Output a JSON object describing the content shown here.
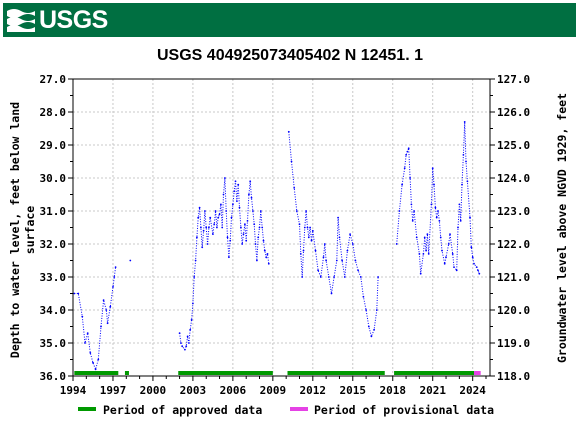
{
  "header": {
    "logo_text": "USGS",
    "logo_icon": "usgs-wave-icon",
    "color": "#006f41"
  },
  "chart_data": {
    "type": "line",
    "title": "USGS 404925073405402 N 12451. 1",
    "ylabel_left_lines": [
      "Depth to water level, feet below land",
      "surface"
    ],
    "ylabel_right": "Groundwater level above NGVD 1929, feet",
    "x_ticks": [
      "1994",
      "1997",
      "2000",
      "2003",
      "2006",
      "2009",
      "2012",
      "2015",
      "2018",
      "2021",
      "2024"
    ],
    "xlim": [
      1994,
      2025.3
    ],
    "y_left_ticks": [
      "27.0",
      "28.0",
      "29.0",
      "30.0",
      "31.0",
      "32.0",
      "33.0",
      "34.0",
      "35.0",
      "36.0"
    ],
    "ylim_left": [
      27.0,
      36.0
    ],
    "y_left_inverted": true,
    "y_right_ticks": [
      "127.0",
      "126.0",
      "125.0",
      "124.0",
      "123.0",
      "122.0",
      "121.0",
      "120.0",
      "119.0",
      "118.0"
    ],
    "ylim_right": [
      118.0,
      127.0
    ],
    "line_color": "#0000ff",
    "grid": true,
    "series": [
      {
        "values": [
          [
            1994.1,
            33.5
          ],
          [
            1994.4,
            33.5
          ],
          [
            1994.7,
            34.2
          ],
          [
            1994.9,
            35.0
          ],
          [
            1995.1,
            34.7
          ],
          [
            1995.3,
            35.3
          ],
          [
            1995.5,
            35.6
          ],
          [
            1995.7,
            35.8
          ],
          [
            1995.9,
            35.5
          ],
          [
            1996.1,
            34.5
          ],
          [
            1996.3,
            33.7
          ],
          [
            1996.5,
            34.0
          ],
          [
            1996.6,
            34.4
          ],
          [
            1996.8,
            33.9
          ],
          [
            1997.0,
            33.3
          ],
          [
            1997.1,
            33.0
          ],
          [
            1997.2,
            32.7
          ]
        ]
      },
      {
        "values": [
          [
            1998.3,
            32.5
          ]
        ]
      },
      {
        "values": [
          [
            2002.0,
            34.7
          ],
          [
            2002.1,
            35.0
          ],
          [
            2002.2,
            35.1
          ],
          [
            2002.4,
            35.2
          ],
          [
            2002.5,
            35.1
          ],
          [
            2002.6,
            34.8
          ],
          [
            2002.7,
            35.0
          ],
          [
            2002.8,
            34.6
          ],
          [
            2002.9,
            34.3
          ],
          [
            2003.0,
            33.8
          ],
          [
            2003.1,
            33.0
          ],
          [
            2003.2,
            32.5
          ],
          [
            2003.3,
            31.8
          ],
          [
            2003.4,
            31.2
          ],
          [
            2003.5,
            30.9
          ],
          [
            2003.6,
            31.5
          ],
          [
            2003.7,
            32.1
          ],
          [
            2003.8,
            31.6
          ],
          [
            2003.9,
            31.0
          ],
          [
            2004.0,
            31.5
          ],
          [
            2004.1,
            32.0
          ],
          [
            2004.2,
            31.5
          ],
          [
            2004.3,
            31.2
          ],
          [
            2004.5,
            31.7
          ],
          [
            2004.6,
            31.4
          ],
          [
            2004.7,
            31.0
          ],
          [
            2004.8,
            31.5
          ],
          [
            2004.9,
            31.2
          ],
          [
            2005.0,
            31.1
          ],
          [
            2005.1,
            30.8
          ],
          [
            2005.2,
            31.5
          ],
          [
            2005.3,
            30.5
          ],
          [
            2005.4,
            30.0
          ],
          [
            2005.5,
            31.0
          ],
          [
            2005.6,
            31.8
          ],
          [
            2005.7,
            32.4
          ],
          [
            2005.8,
            31.9
          ],
          [
            2005.9,
            31.2
          ],
          [
            2006.0,
            30.8
          ],
          [
            2006.1,
            30.4
          ],
          [
            2006.2,
            30.1
          ],
          [
            2006.3,
            30.7
          ],
          [
            2006.4,
            30.2
          ],
          [
            2006.5,
            30.9
          ],
          [
            2006.6,
            31.5
          ],
          [
            2006.7,
            32.0
          ],
          [
            2006.8,
            31.7
          ],
          [
            2006.9,
            31.4
          ],
          [
            2007.0,
            31.9
          ],
          [
            2007.1,
            31.3
          ],
          [
            2007.2,
            30.5
          ],
          [
            2007.3,
            30.1
          ],
          [
            2007.4,
            30.6
          ],
          [
            2007.5,
            31.0
          ],
          [
            2007.6,
            31.4
          ],
          [
            2007.7,
            32.0
          ],
          [
            2007.8,
            32.5
          ],
          [
            2007.9,
            31.8
          ],
          [
            2008.0,
            31.5
          ],
          [
            2008.1,
            31.0
          ],
          [
            2008.2,
            31.5
          ],
          [
            2008.3,
            31.9
          ],
          [
            2008.4,
            32.2
          ],
          [
            2008.5,
            32.4
          ],
          [
            2008.6,
            32.3
          ],
          [
            2008.7,
            32.6
          ]
        ]
      },
      {
        "values": [
          [
            2010.2,
            28.6
          ],
          [
            2010.4,
            29.5
          ],
          [
            2010.6,
            30.3
          ],
          [
            2010.8,
            31.0
          ],
          [
            2011.0,
            31.4
          ],
          [
            2011.1,
            32.3
          ],
          [
            2011.2,
            33.0
          ],
          [
            2011.3,
            32.2
          ],
          [
            2011.4,
            31.5
          ],
          [
            2011.5,
            31.0
          ],
          [
            2011.6,
            31.5
          ],
          [
            2011.7,
            31.8
          ],
          [
            2011.8,
            31.5
          ],
          [
            2011.9,
            31.9
          ],
          [
            2012.0,
            31.6
          ],
          [
            2012.2,
            32.2
          ],
          [
            2012.4,
            32.8
          ],
          [
            2012.6,
            33.0
          ],
          [
            2012.8,
            32.4
          ],
          [
            2012.9,
            32.0
          ],
          [
            2013.0,
            32.5
          ],
          [
            2013.2,
            33.0
          ],
          [
            2013.4,
            33.5
          ],
          [
            2013.6,
            33.0
          ],
          [
            2013.8,
            32.5
          ],
          [
            2013.9,
            31.2
          ],
          [
            2014.0,
            31.8
          ],
          [
            2014.2,
            32.5
          ],
          [
            2014.4,
            33.0
          ],
          [
            2014.6,
            32.2
          ],
          [
            2014.8,
            31.7
          ],
          [
            2015.0,
            32.0
          ],
          [
            2015.2,
            32.5
          ],
          [
            2015.4,
            32.8
          ],
          [
            2015.6,
            33.0
          ],
          [
            2015.8,
            33.6
          ],
          [
            2016.0,
            34.0
          ],
          [
            2016.2,
            34.5
          ],
          [
            2016.4,
            34.8
          ],
          [
            2016.6,
            34.6
          ],
          [
            2016.8,
            34.0
          ],
          [
            2016.9,
            33.0
          ]
        ]
      },
      {
        "values": [
          [
            2018.3,
            32.0
          ],
          [
            2018.5,
            31.0
          ],
          [
            2018.7,
            30.2
          ],
          [
            2018.9,
            29.7
          ],
          [
            2019.0,
            29.3
          ],
          [
            2019.1,
            29.2
          ],
          [
            2019.2,
            29.1
          ],
          [
            2019.3,
            30.0
          ],
          [
            2019.4,
            30.8
          ],
          [
            2019.5,
            31.3
          ],
          [
            2019.6,
            31.0
          ],
          [
            2019.8,
            31.8
          ],
          [
            2020.0,
            32.3
          ],
          [
            2020.1,
            32.9
          ],
          [
            2020.3,
            32.3
          ],
          [
            2020.4,
            31.8
          ],
          [
            2020.5,
            32.2
          ],
          [
            2020.6,
            31.7
          ],
          [
            2020.7,
            32.3
          ],
          [
            2020.9,
            30.8
          ],
          [
            2021.0,
            29.7
          ],
          [
            2021.1,
            30.2
          ],
          [
            2021.2,
            30.9
          ],
          [
            2021.3,
            31.2
          ],
          [
            2021.4,
            31.0
          ],
          [
            2021.5,
            31.3
          ],
          [
            2021.6,
            31.8
          ],
          [
            2021.7,
            32.2
          ],
          [
            2021.9,
            32.6
          ],
          [
            2022.0,
            32.4
          ],
          [
            2022.2,
            32.0
          ],
          [
            2022.3,
            31.7
          ],
          [
            2022.5,
            32.3
          ],
          [
            2022.6,
            32.7
          ],
          [
            2022.8,
            32.8
          ],
          [
            2022.9,
            31.5
          ],
          [
            2023.0,
            30.8
          ],
          [
            2023.1,
            31.3
          ],
          [
            2023.2,
            30.2
          ],
          [
            2023.3,
            29.3
          ],
          [
            2023.4,
            28.3
          ],
          [
            2023.5,
            29.5
          ],
          [
            2023.6,
            30.1
          ],
          [
            2023.8,
            31.2
          ],
          [
            2023.9,
            32.1
          ],
          [
            2024.0,
            32.4
          ],
          [
            2024.1,
            32.6
          ],
          [
            2024.3,
            32.7
          ],
          [
            2024.4,
            32.8
          ],
          [
            2024.5,
            32.9
          ]
        ]
      }
    ],
    "periods": {
      "approved": [
        [
          1994.1,
          1997.4
        ],
        [
          1997.9,
          1998.2
        ],
        [
          2001.9,
          2009.0
        ],
        [
          2010.1,
          2017.4
        ],
        [
          2018.1,
          2024.1
        ]
      ],
      "provisional": [
        [
          2024.1,
          2024.6
        ]
      ]
    },
    "approved_color": "#009900",
    "provisional_color": "#e542e5",
    "legend": [
      {
        "label": "Period of approved data",
        "color": "#009900"
      },
      {
        "label": "Period of provisional data",
        "color": "#e542e5"
      }
    ]
  }
}
